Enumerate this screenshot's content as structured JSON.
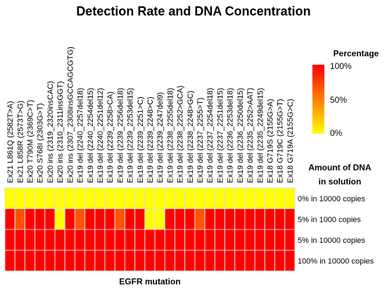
{
  "chart_data": {
    "type": "heatmap",
    "title": "Detection Rate and DNA Concentration",
    "xlabel": "EGFR mutation",
    "ylabel": "Amount of DNA in solution",
    "ylabel_lines": [
      "Amount of DNA",
      "in solution"
    ],
    "x_categories": [
      "Ex21 L861Q (2582T>A)",
      "Ex21 L858R (2573T>G)",
      "Ex20 T790M (2369C>T)",
      "Ex20 S768I (2303G>T)",
      "Ex20 ins (2319_2320insCAC)",
      "Ex20 ins (2310_2311insGGT)",
      "Ex20 ins (2307_2308insGCCAGCGTG)",
      "Ex19 del (2240_2257del18)",
      "Ex19 del (2240_2254del15)",
      "Ex19 del (2240_2251del12)",
      "Ex19 del (2239_2258>CA)",
      "Ex19 del (2239_2256del18)",
      "Ex19 del (2239_2253del15)",
      "Ex19 del (2239_2251>C)",
      "Ex19 del (2239_2248>C)",
      "Ex19 del (2239_2247del9)",
      "Ex19 del (2238_2255del18)",
      "Ex19 del (2238_2252>GCA)",
      "Ex19 del (2238_2248>GC)",
      "Ex19 del (2237_2255>T)",
      "Ex19 del (2237_2254del18)",
      "Ex19 del (2237_2251del15)",
      "Ex19 del (2236_2253del18)",
      "Ex19 del (2236_2250del15)",
      "Ex19 del (2235_2252>AAT)",
      "Ex19 del (2235_2249del15)",
      "Ex18 G719S (2155G>A)",
      "Ex18 G719C (2155G>T)",
      "Ex18 G719A (2155G>C)"
    ],
    "y_categories": [
      "0% in 10000 copies",
      "5% in 1000 copies",
      "5% in 10000 copies",
      "100% in 10000 copies"
    ],
    "values": [
      [
        0,
        0,
        0,
        0,
        0,
        0,
        0,
        0,
        0,
        0,
        0,
        0,
        0,
        0,
        0,
        0,
        0,
        0,
        0,
        0,
        0,
        0,
        0,
        0,
        0,
        0,
        0,
        0,
        0
      ],
      [
        100,
        67,
        100,
        100,
        100,
        0,
        100,
        67,
        100,
        100,
        100,
        67,
        100,
        100,
        0,
        0,
        100,
        100,
        100,
        67,
        100,
        100,
        100,
        100,
        100,
        100,
        100,
        100,
        100
      ],
      [
        100,
        100,
        100,
        100,
        100,
        100,
        100,
        100,
        100,
        100,
        100,
        100,
        100,
        100,
        100,
        100,
        100,
        100,
        100,
        100,
        100,
        100,
        100,
        100,
        100,
        100,
        100,
        100,
        100
      ],
      [
        100,
        100,
        100,
        100,
        100,
        100,
        100,
        100,
        100,
        100,
        100,
        100,
        100,
        100,
        100,
        100,
        100,
        100,
        100,
        100,
        100,
        100,
        100,
        100,
        100,
        100,
        100,
        100,
        100
      ]
    ],
    "legend": {
      "title": "Percentage",
      "ticks": [
        "100%",
        "50%",
        "0%"
      ],
      "range": [
        0,
        100
      ],
      "placement": "right"
    },
    "colors": {
      "low": "#ffff00",
      "high": "#ff0000",
      "grid_line": "#dcdcdc"
    }
  }
}
